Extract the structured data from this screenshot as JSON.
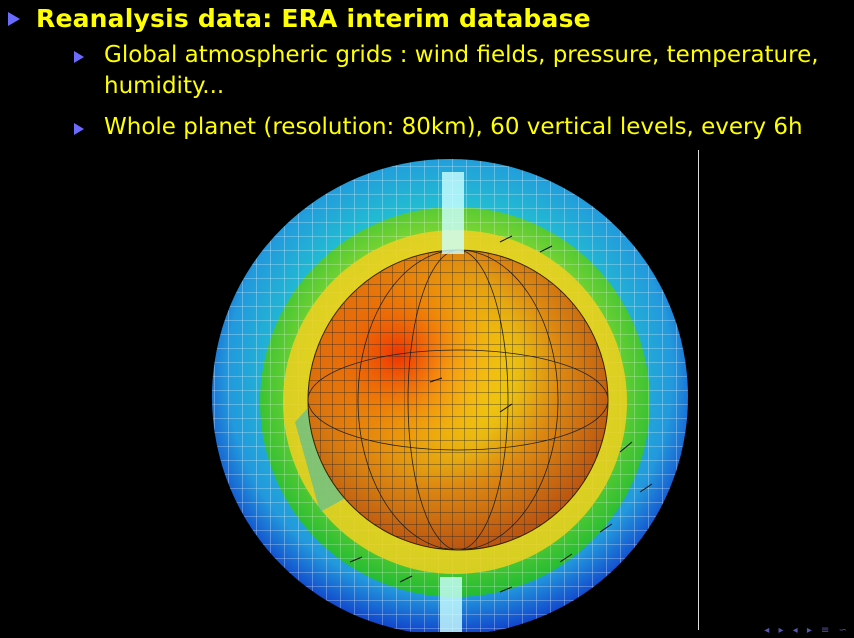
{
  "slide": {
    "heading": "Reanalysis data: ERA interim database",
    "bullets": [
      "Global atmospheric grids : wind fields, pressure, temperature, humidity...",
      "Whole planet (resolution: 80km), 60 vertical levels, every 6h"
    ]
  },
  "nav_icons": "◂ ▸ ◂ ▸ ≡ ∽"
}
